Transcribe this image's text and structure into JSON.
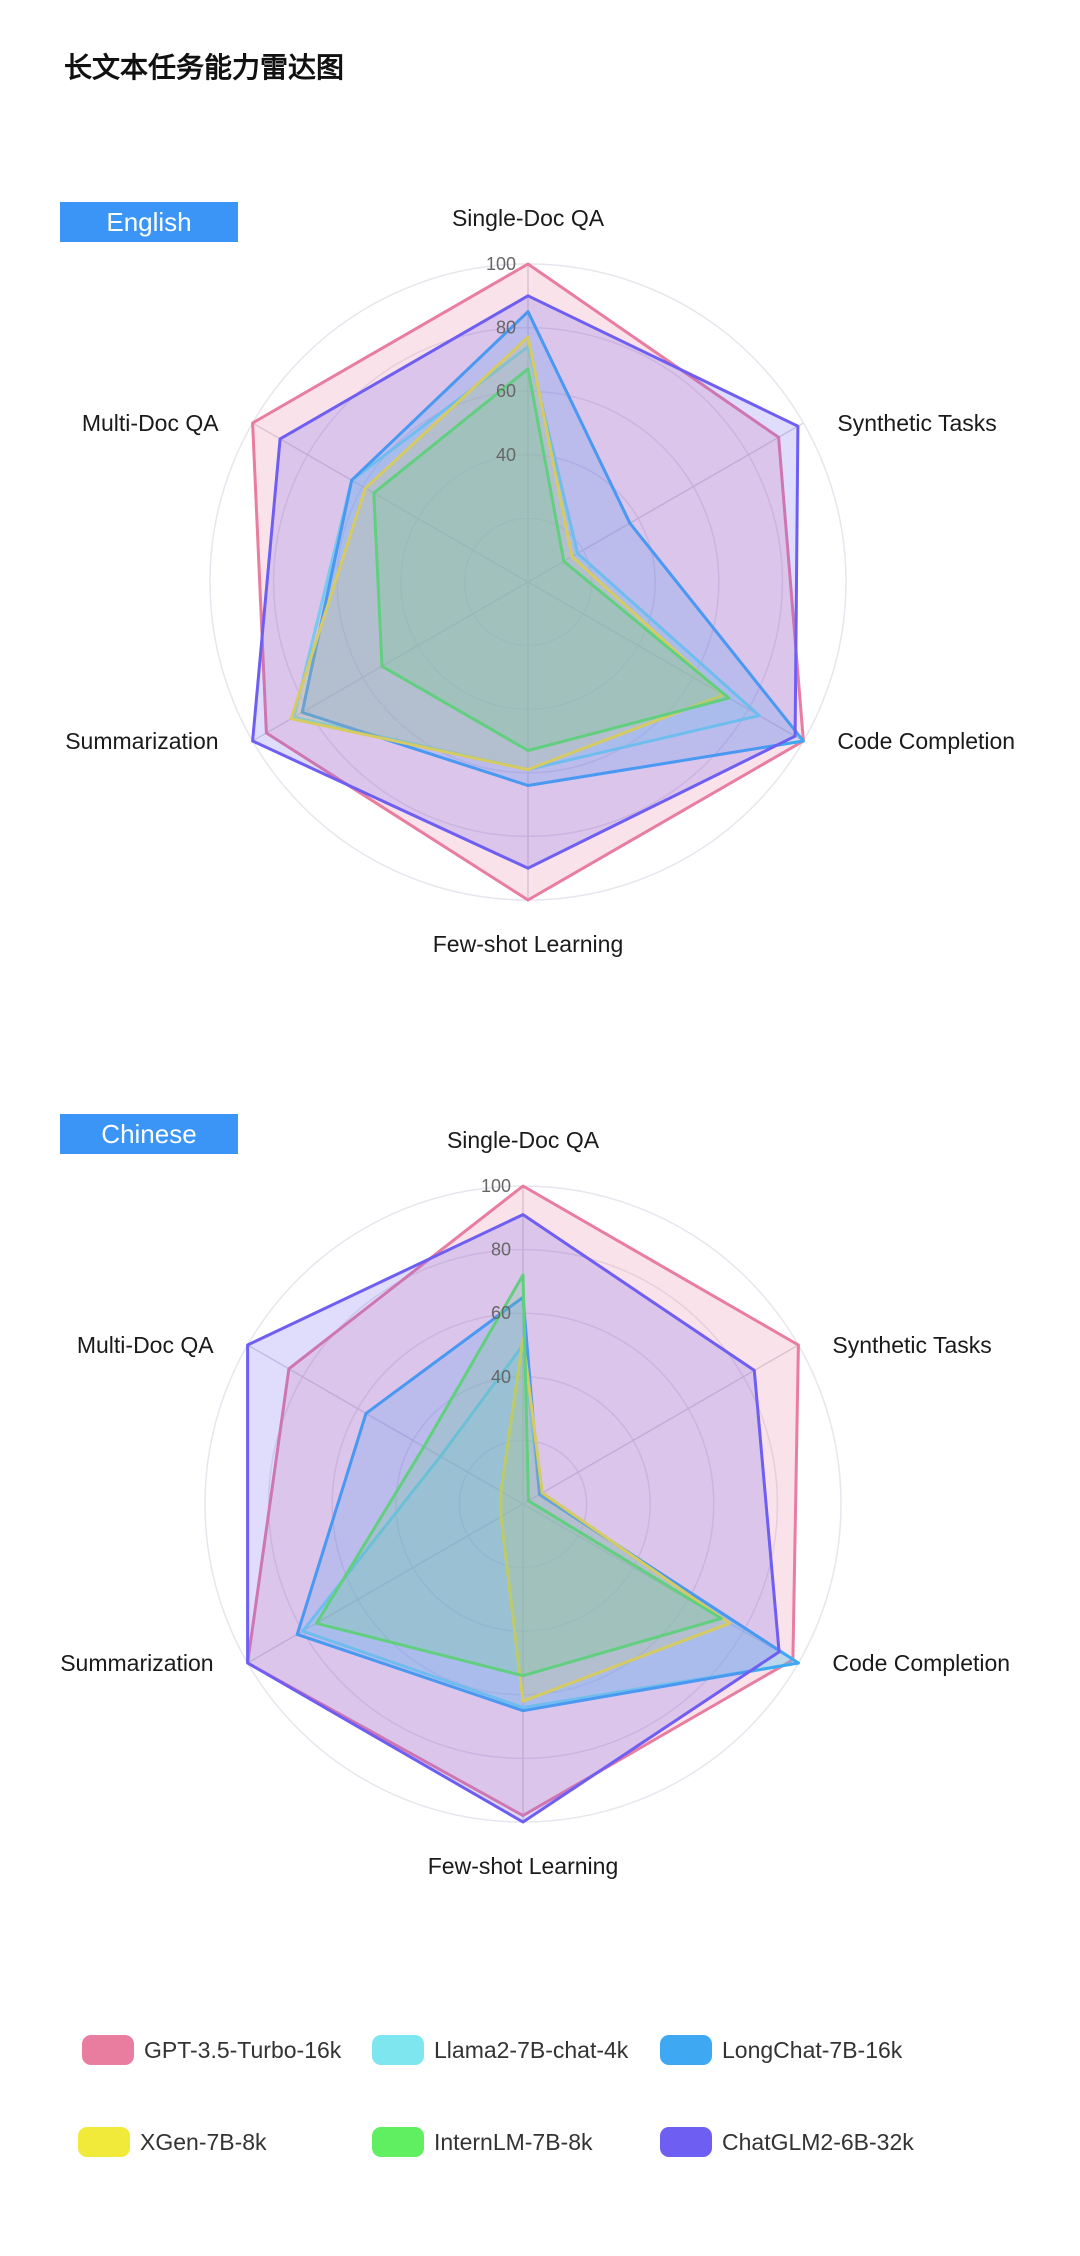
{
  "title": "长文本任务能力雷达图",
  "chart_data": [
    {
      "type": "radar",
      "tag": "English",
      "axes": [
        "Single-Doc QA",
        "Synthetic Tasks",
        "Code Completion",
        "Few-shot Learning",
        "Summarization",
        "Multi-Doc QA"
      ],
      "rlim": [
        0,
        100
      ],
      "ticks": [
        40,
        60,
        80,
        100
      ],
      "series": [
        {
          "name": "GPT-3.5-Turbo-16k",
          "values": [
            100,
            91,
            100,
            100,
            95,
            100
          ]
        },
        {
          "name": "Llama2-7B-chat-4k",
          "values": [
            74,
            18,
            84,
            59,
            85,
            64
          ]
        },
        {
          "name": "LongChat-7B-16k",
          "values": [
            85,
            37,
            100,
            64,
            82,
            64
          ]
        },
        {
          "name": "XGen-7B-8k",
          "values": [
            77,
            16,
            71,
            59,
            86,
            59
          ]
        },
        {
          "name": "InternLM-7B-8k",
          "values": [
            67,
            13,
            73,
            53,
            53,
            56
          ]
        },
        {
          "name": "ChatGLM2-6B-32k",
          "values": [
            90,
            98,
            97,
            90,
            100,
            90
          ]
        }
      ]
    },
    {
      "type": "radar",
      "tag": "Chinese",
      "axes": [
        "Single-Doc QA",
        "Synthetic Tasks",
        "Code Completion",
        "Few-shot Learning",
        "Summarization",
        "Multi-Doc QA"
      ],
      "rlim": [
        0,
        100
      ],
      "ticks": [
        40,
        60,
        80,
        100
      ],
      "series": [
        {
          "name": "GPT-3.5-Turbo-16k",
          "values": [
            100,
            100,
            98,
            98,
            100,
            85
          ]
        },
        {
          "name": "Llama2-7B-chat-4k",
          "values": [
            50,
            6,
            100,
            64,
            80,
            30
          ]
        },
        {
          "name": "LongChat-7B-16k",
          "values": [
            65,
            6,
            100,
            65,
            82,
            57
          ]
        },
        {
          "name": "XGen-7B-8k",
          "values": [
            52,
            7,
            75,
            62,
            8,
            8
          ]
        },
        {
          "name": "InternLM-7B-8k",
          "values": [
            72,
            2,
            72,
            54,
            75,
            36
          ]
        },
        {
          "name": "ChatGLM2-6B-32k",
          "values": [
            91,
            84,
            93,
            100,
            100,
            100
          ]
        }
      ]
    }
  ],
  "legend": [
    {
      "name": "GPT-3.5-Turbo-16k",
      "color": "#e87da0",
      "fill": "rgba(232,125,160,0.22)"
    },
    {
      "name": "Llama2-7B-chat-4k",
      "color": "#7ee6ee",
      "fill": "rgba(126,230,238,0.22)"
    },
    {
      "name": "LongChat-7B-16k",
      "color": "#3fa8f3",
      "fill": "rgba(63,168,243,0.22)"
    },
    {
      "name": "XGen-7B-8k",
      "color": "#f2ea3a",
      "fill": "rgba(242,234,58,0.22)"
    },
    {
      "name": "InternLM-7B-8k",
      "color": "#5fef60",
      "fill": "rgba(95,239,96,0.22)"
    },
    {
      "name": "ChatGLM2-6B-32k",
      "color": "#6f5ef2",
      "fill": "rgba(111,94,242,0.22)"
    }
  ]
}
